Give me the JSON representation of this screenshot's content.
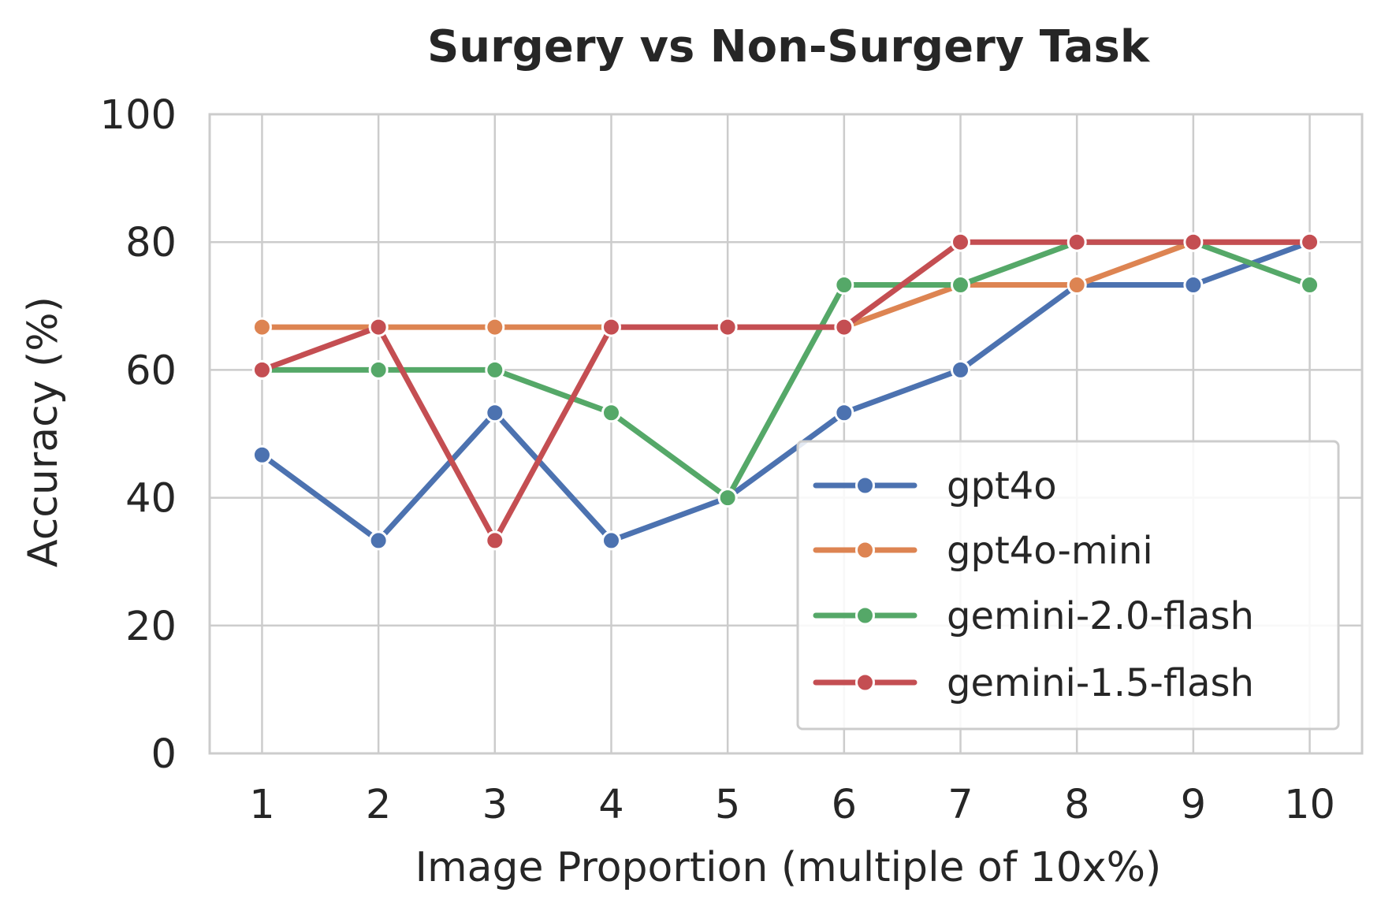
{
  "chart_data": {
    "type": "line",
    "title": "Surgery vs Non-Surgery Task",
    "xlabel": "Image Proportion (multiple of 10x%)",
    "ylabel": "Accuracy (%)",
    "x": [
      1,
      2,
      3,
      4,
      5,
      6,
      7,
      8,
      9,
      10
    ],
    "x_tick_labels": [
      "1",
      "2",
      "3",
      "4",
      "5",
      "6",
      "7",
      "8",
      "9",
      "10"
    ],
    "y_tick_labels": [
      "0",
      "20",
      "40",
      "60",
      "80",
      "100"
    ],
    "y_ticks": [
      0,
      20,
      40,
      60,
      80,
      100
    ],
    "xlim": [
      0.55,
      10.45
    ],
    "ylim": [
      0,
      100
    ],
    "grid": true,
    "legend_position": "lower right",
    "series": [
      {
        "name": "gpt4o",
        "color": "#4c72b0",
        "values": [
          46.7,
          33.3,
          53.3,
          33.3,
          40.0,
          53.3,
          60.0,
          73.3,
          73.3,
          80.0
        ]
      },
      {
        "name": "gpt4o-mini",
        "color": "#dd8452",
        "values": [
          66.7,
          66.7,
          66.7,
          66.7,
          66.7,
          66.7,
          73.3,
          73.3,
          80.0,
          80.0
        ]
      },
      {
        "name": "gemini-2.0-flash",
        "color": "#55a868",
        "values": [
          60.0,
          60.0,
          60.0,
          53.3,
          40.0,
          73.3,
          73.3,
          80.0,
          80.0,
          73.3
        ]
      },
      {
        "name": "gemini-1.5-flash",
        "color": "#c44e52",
        "values": [
          60.0,
          66.7,
          33.3,
          66.7,
          66.7,
          66.7,
          80.0,
          80.0,
          80.0,
          80.0
        ]
      }
    ]
  }
}
